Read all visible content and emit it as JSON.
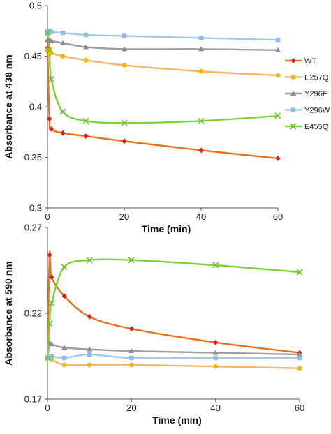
{
  "chart_data": [
    {
      "type": "line",
      "title": "",
      "xlabel": "Time (min)",
      "ylabel": "Absorbance at 438 nm",
      "xlim": [
        0,
        60
      ],
      "ylim": [
        0.3,
        0.5
      ],
      "xticks": [
        0,
        20,
        40,
        60
      ],
      "yticks": [
        0.3,
        0.35,
        0.4,
        0.45,
        0.5
      ],
      "ytick_labels": [
        "0.3",
        "0.35",
        "0.4",
        "0.45",
        "0.5"
      ],
      "grid": false,
      "legend_position": "right",
      "series": [
        {
          "name": "WT",
          "color": "#e8731c",
          "marker_color": "#e31a1c",
          "marker": "diamond",
          "x": [
            0,
            0.5,
            1,
            4,
            10,
            20,
            40,
            60
          ],
          "y": [
            0.458,
            0.388,
            0.378,
            0.374,
            0.371,
            0.366,
            0.357,
            0.349
          ]
        },
        {
          "name": "E257Q",
          "color": "#f7b26b",
          "marker_color": "#f5b800",
          "marker": "circle",
          "x": [
            0,
            0.5,
            1,
            4,
            10,
            20,
            40,
            60
          ],
          "y": [
            0.456,
            0.456,
            0.453,
            0.45,
            0.446,
            0.441,
            0.435,
            0.431
          ]
        },
        {
          "name": "Y296F",
          "color": "#9e9e9e",
          "marker_color": "#8c8c8c",
          "marker": "triangle",
          "x": [
            0,
            0.5,
            1,
            4,
            10,
            20,
            40,
            60
          ],
          "y": [
            0.466,
            0.466,
            0.465,
            0.463,
            0.459,
            0.457,
            0.457,
            0.456
          ]
        },
        {
          "name": "Y296W",
          "color": "#a6c8e6",
          "marker_color": "#8dbde6",
          "marker": "square",
          "x": [
            0,
            0.5,
            1,
            4,
            10,
            20,
            40,
            60
          ],
          "y": [
            0.474,
            0.475,
            0.474,
            0.473,
            0.471,
            0.47,
            0.468,
            0.466
          ]
        },
        {
          "name": "E455Q",
          "color": "#7dd13a",
          "marker_color": "#6cc02a",
          "marker": "x",
          "x": [
            0,
            0.5,
            1,
            4,
            10,
            20,
            40,
            60
          ],
          "y": [
            0.473,
            0.456,
            0.427,
            0.395,
            0.386,
            0.384,
            0.386,
            0.391
          ]
        }
      ]
    },
    {
      "type": "line",
      "title": "",
      "xlabel": "Time (min)",
      "ylabel": "Absorbance at 590 nm",
      "xlim": [
        0,
        60
      ],
      "ylim": [
        0.17,
        0.27
      ],
      "xticks": [
        0,
        20,
        40,
        60
      ],
      "yticks": [
        0.17,
        0.22,
        0.27
      ],
      "ytick_labels": [
        "0.17",
        "0.22",
        "0.27"
      ],
      "grid": false,
      "legend_position": "none",
      "series": [
        {
          "name": "WT",
          "color": "#e8731c",
          "marker_color": "#e31a1c",
          "marker": "diamond",
          "x": [
            0,
            0.5,
            1,
            4,
            10,
            20,
            40,
            60
          ],
          "y": [
            0.194,
            0.254,
            0.241,
            0.23,
            0.218,
            0.211,
            0.203,
            0.197
          ]
        },
        {
          "name": "E257Q",
          "color": "#f7b26b",
          "marker_color": "#f5b800",
          "marker": "circle",
          "x": [
            0,
            0.5,
            1,
            4,
            10,
            20,
            40,
            60
          ],
          "y": [
            0.194,
            0.194,
            0.193,
            0.19,
            0.19,
            0.19,
            0.189,
            0.188
          ]
        },
        {
          "name": "Y296F",
          "color": "#9e9e9e",
          "marker_color": "#8c8c8c",
          "marker": "triangle",
          "x": [
            0,
            0.5,
            1,
            4,
            10,
            20,
            40,
            60
          ],
          "y": [
            0.194,
            0.203,
            0.202,
            0.2,
            0.199,
            0.198,
            0.197,
            0.196
          ]
        },
        {
          "name": "Y296W",
          "color": "#a6c8e6",
          "marker_color": "#8dbde6",
          "marker": "square",
          "x": [
            0,
            0.5,
            1,
            4,
            10,
            20,
            40,
            60
          ],
          "y": [
            0.194,
            0.194,
            0.195,
            0.194,
            0.196,
            0.194,
            0.194,
            0.194
          ]
        },
        {
          "name": "E455Q",
          "color": "#7dd13a",
          "marker_color": "#6cc02a",
          "marker": "x",
          "x": [
            0,
            0.5,
            1,
            4,
            10,
            20,
            40,
            60
          ],
          "y": [
            0.194,
            0.214,
            0.226,
            0.247,
            0.251,
            0.251,
            0.248,
            0.244
          ]
        }
      ]
    }
  ]
}
